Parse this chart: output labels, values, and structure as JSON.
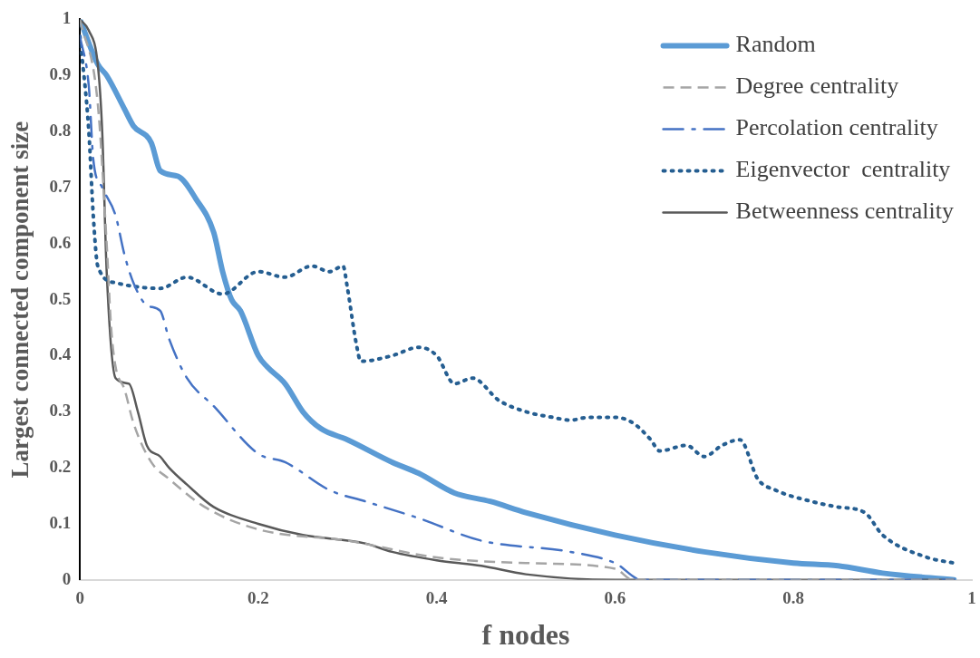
{
  "chart_data": {
    "type": "line",
    "xlabel": "f nodes",
    "ylabel": "Largest connected component size",
    "xlim": [
      0,
      1
    ],
    "ylim": [
      0,
      1
    ],
    "xticks": [
      0,
      0.2,
      0.4,
      0.6,
      0.8,
      1
    ],
    "yticks": [
      0,
      0.1,
      0.2,
      0.3,
      0.4,
      0.5,
      0.6,
      0.7,
      0.8,
      0.9,
      1
    ],
    "grid": false,
    "legend": "top right",
    "series": [
      {
        "name": "Random",
        "color": "#5b9bd5",
        "line_style": "solid",
        "x": [
          0,
          0.02,
          0.03,
          0.05,
          0.06,
          0.08,
          0.09,
          0.11,
          0.13,
          0.15,
          0.16,
          0.17,
          0.18,
          0.2,
          0.21,
          0.23,
          0.25,
          0.27,
          0.3,
          0.35,
          0.38,
          0.42,
          0.46,
          0.5,
          0.6,
          0.7,
          0.8,
          0.85,
          0.9,
          0.98
        ],
        "values": [
          1,
          0.92,
          0.9,
          0.84,
          0.81,
          0.78,
          0.73,
          0.72,
          0.68,
          0.62,
          0.55,
          0.5,
          0.48,
          0.4,
          0.38,
          0.35,
          0.3,
          0.27,
          0.25,
          0.21,
          0.19,
          0.155,
          0.14,
          0.12,
          0.08,
          0.05,
          0.03,
          0.025,
          0.012,
          0
        ]
      },
      {
        "name": "Degree centrality",
        "color": "#a5a5a5",
        "line_style": "dashed",
        "x": [
          0,
          0.02,
          0.03,
          0.035,
          0.04,
          0.05,
          0.06,
          0.08,
          0.1,
          0.14,
          0.2,
          0.3,
          0.4,
          0.5,
          0.6,
          0.62,
          0.98
        ],
        "values": [
          1,
          0.85,
          0.6,
          0.45,
          0.38,
          0.34,
          0.28,
          0.21,
          0.18,
          0.13,
          0.09,
          0.07,
          0.04,
          0.03,
          0.02,
          0,
          0
        ]
      },
      {
        "name": "Percolation centrality",
        "color": "#4472c4",
        "line_style": "dashdot",
        "x": [
          0,
          0.01,
          0.015,
          0.025,
          0.04,
          0.05,
          0.06,
          0.075,
          0.09,
          0.1,
          0.12,
          0.15,
          0.2,
          0.23,
          0.28,
          0.32,
          0.38,
          0.45,
          0.55,
          0.6,
          0.63,
          0.98
        ],
        "values": [
          0.97,
          0.88,
          0.75,
          0.7,
          0.65,
          0.58,
          0.53,
          0.49,
          0.48,
          0.43,
          0.36,
          0.31,
          0.225,
          0.21,
          0.16,
          0.14,
          0.11,
          0.07,
          0.05,
          0.03,
          0,
          0
        ]
      },
      {
        "name": "Eigenvector  centrality",
        "color": "#255e91",
        "line_style": "dotted",
        "x": [
          0,
          0.01,
          0.015,
          0.02,
          0.04,
          0.09,
          0.12,
          0.16,
          0.2,
          0.23,
          0.26,
          0.28,
          0.295,
          0.3,
          0.31,
          0.315,
          0.35,
          0.38,
          0.4,
          0.42,
          0.44,
          0.47,
          0.5,
          0.53,
          0.55,
          0.57,
          0.6,
          0.62,
          0.64,
          0.65,
          0.68,
          0.7,
          0.72,
          0.74,
          0.76,
          0.78,
          0.82,
          0.85,
          0.88,
          0.9,
          0.95,
          0.98
        ],
        "values": [
          0.97,
          0.8,
          0.65,
          0.56,
          0.53,
          0.52,
          0.54,
          0.51,
          0.55,
          0.54,
          0.56,
          0.55,
          0.56,
          0.52,
          0.42,
          0.39,
          0.4,
          0.415,
          0.4,
          0.35,
          0.36,
          0.32,
          0.3,
          0.29,
          0.285,
          0.29,
          0.29,
          0.28,
          0.25,
          0.23,
          0.24,
          0.22,
          0.24,
          0.25,
          0.18,
          0.16,
          0.14,
          0.13,
          0.12,
          0.08,
          0.04,
          0.03
        ]
      },
      {
        "name": "Betweenness centrality",
        "color": "#595959",
        "line_style": "solid",
        "x": [
          0,
          0.01,
          0.02,
          0.025,
          0.03,
          0.04,
          0.055,
          0.065,
          0.075,
          0.09,
          0.1,
          0.12,
          0.15,
          0.2,
          0.25,
          0.32,
          0.35,
          0.4,
          0.45,
          0.5,
          0.6,
          0.98
        ],
        "values": [
          1,
          0.98,
          0.92,
          0.8,
          0.55,
          0.36,
          0.35,
          0.3,
          0.24,
          0.22,
          0.2,
          0.17,
          0.13,
          0.1,
          0.08,
          0.065,
          0.05,
          0.035,
          0.025,
          0.01,
          0,
          0
        ]
      }
    ]
  }
}
